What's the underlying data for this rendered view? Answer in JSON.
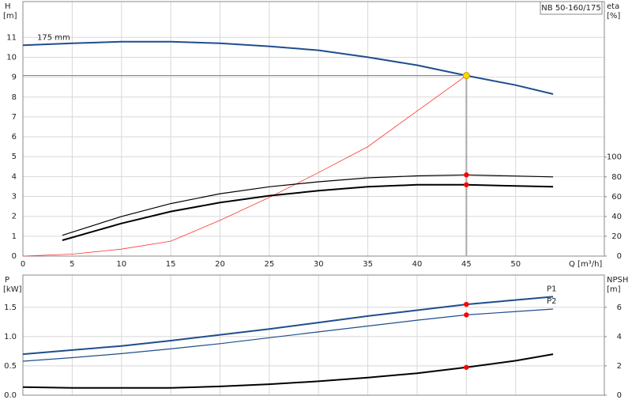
{
  "chart_data": [
    {
      "type": "line",
      "title": "NB 50-160/175",
      "x_label": "Q [m³/h]",
      "y_label": "H",
      "y_unit": "[m]",
      "y2_label": "eta",
      "y2_unit": "[%]",
      "xlim": [
        0,
        59
      ],
      "xticks": [
        0,
        5,
        10,
        15,
        20,
        25,
        30,
        35,
        40,
        45,
        50
      ],
      "ylim": [
        0,
        12.8
      ],
      "yticks": [
        0,
        1,
        2,
        3,
        4,
        5,
        6,
        7,
        8,
        9,
        10,
        11
      ],
      "y2lim": [
        0,
        257
      ],
      "y2ticks": [
        0,
        20,
        40,
        60,
        80,
        100
      ],
      "grid": true,
      "series": [
        {
          "name": "175 mm",
          "label_position": "start",
          "color": "#1f4e8c",
          "style": "thick",
          "x": [
            0,
            5,
            10,
            15,
            20,
            25,
            30,
            35,
            40,
            45,
            50,
            53.8
          ],
          "values": [
            10.6,
            10.7,
            10.78,
            10.78,
            10.7,
            10.55,
            10.35,
            10.0,
            9.6,
            9.08,
            8.6,
            8.15
          ]
        },
        {
          "color": "#ff3333",
          "style": "hair",
          "x": [
            0,
            5,
            10,
            15,
            20,
            25,
            30,
            35,
            40,
            45
          ],
          "values": [
            0,
            0.1,
            0.35,
            0.75,
            1.8,
            2.95,
            4.2,
            5.5,
            7.3,
            9.08
          ]
        },
        {
          "color": "#000000",
          "style": "thin",
          "axis": "y2",
          "x": [
            4,
            10,
            15,
            20,
            25,
            30,
            35,
            40,
            45,
            53.8
          ],
          "values": [
            21,
            40,
            53,
            63,
            70,
            75,
            79,
            81,
            82,
            80
          ]
        },
        {
          "color": "#000000",
          "style": "thick",
          "axis": "y2",
          "x": [
            4,
            10,
            15,
            20,
            25,
            30,
            35,
            40,
            45,
            53.8
          ],
          "values": [
            16,
            33,
            45,
            54,
            61,
            66,
            70,
            72,
            72,
            70
          ]
        },
        {
          "color": "#ffd700",
          "marker": true,
          "guide": true,
          "x": [
            45
          ],
          "values": [
            9.08
          ]
        },
        {
          "color": "#ff0000",
          "marker": true,
          "axis": "y2",
          "x": [
            45
          ],
          "values": [
            82
          ]
        },
        {
          "color": "#ff0000",
          "marker": true,
          "axis": "y2",
          "x": [
            45
          ],
          "values": [
            72
          ]
        }
      ]
    },
    {
      "type": "line",
      "y_label": "P",
      "y_unit": "[kW]",
      "y2_label": "NPSH",
      "y2_unit": "[m]",
      "xlim": [
        0,
        59
      ],
      "xticks": [
        0,
        5,
        10,
        15,
        20,
        25,
        30,
        35,
        40,
        45,
        50
      ],
      "xtick_labels": false,
      "ylim": [
        0,
        2.05
      ],
      "yticks": [
        {
          "value": 0,
          "label": "0.0"
        },
        0.5,
        {
          "value": 1,
          "label": "1.0"
        },
        1.5
      ],
      "y2lim": [
        0,
        8.2
      ],
      "y2ticks": [
        0,
        2,
        4,
        6
      ],
      "grid": true,
      "series": [
        {
          "name": "P1",
          "label_position": "end",
          "color": "#1f4e8c",
          "style": "thick",
          "x": [
            0,
            5,
            10,
            15,
            20,
            25,
            30,
            35,
            40,
            45,
            53.8
          ],
          "values": [
            0.7,
            0.77,
            0.84,
            0.93,
            1.03,
            1.13,
            1.24,
            1.35,
            1.45,
            1.55,
            1.68
          ]
        },
        {
          "name": "P2",
          "label_position": "end",
          "color": "#1f4e8c",
          "style": "thin",
          "x": [
            0,
            5,
            10,
            15,
            20,
            25,
            30,
            35,
            40,
            45,
            53.8
          ],
          "values": [
            0.58,
            0.64,
            0.71,
            0.79,
            0.88,
            0.98,
            1.08,
            1.18,
            1.28,
            1.37,
            1.47
          ]
        },
        {
          "color": "#000000",
          "style": "thick",
          "axis": "y2",
          "x": [
            0,
            5,
            10,
            15,
            20,
            25,
            30,
            35,
            40,
            45,
            50,
            53.8
          ],
          "values": [
            0.55,
            0.5,
            0.5,
            0.5,
            0.6,
            0.75,
            0.95,
            1.2,
            1.5,
            1.9,
            2.35,
            2.8
          ]
        },
        {
          "color": "#ff0000",
          "marker": true,
          "x": [
            45
          ],
          "values": [
            1.55
          ]
        },
        {
          "color": "#ff0000",
          "marker": true,
          "x": [
            45
          ],
          "values": [
            1.37
          ]
        },
        {
          "color": "#ff0000",
          "marker": true,
          "axis": "y2",
          "x": [
            45
          ],
          "values": [
            1.9
          ]
        }
      ]
    }
  ]
}
